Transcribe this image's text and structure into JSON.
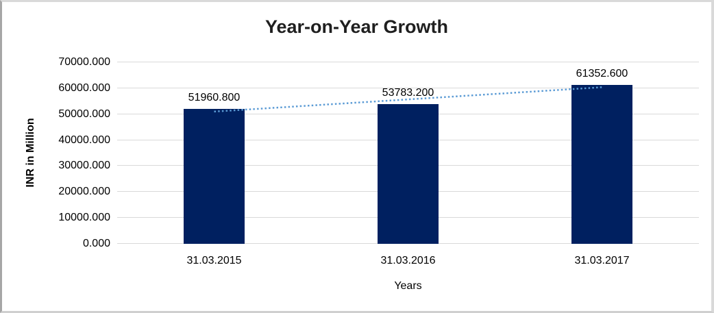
{
  "frame": {
    "background": "#ffffff",
    "border_color": "#d9d9d9",
    "border_left_color": "#a6a6a6"
  },
  "chart_data": {
    "type": "bar",
    "title": "Year-on-Year Growth",
    "categories": [
      "31.03.2015",
      "31.03.2016",
      "31.03.2017"
    ],
    "values": [
      51960.8,
      53783.2,
      61352.6
    ],
    "data_labels": [
      "51960.800",
      "53783.200",
      "61352.600"
    ],
    "xlabel": "Years",
    "ylabel": "INR in Million",
    "ylim": [
      0,
      70000
    ],
    "ytick_step": 10000,
    "ytick_labels": [
      "0.000",
      "10000.000",
      "20000.000",
      "30000.000",
      "40000.000",
      "50000.000",
      "60000.000",
      "70000.000"
    ],
    "grid": true,
    "legend_position": "none",
    "trendline": {
      "fit": "linear",
      "style": "dotted"
    },
    "colors": {
      "bar": "#002060",
      "gridline": "#d9d9d9",
      "trendline": "#5b9bd5",
      "text": "#000000",
      "title": "#1f1f1f"
    }
  }
}
